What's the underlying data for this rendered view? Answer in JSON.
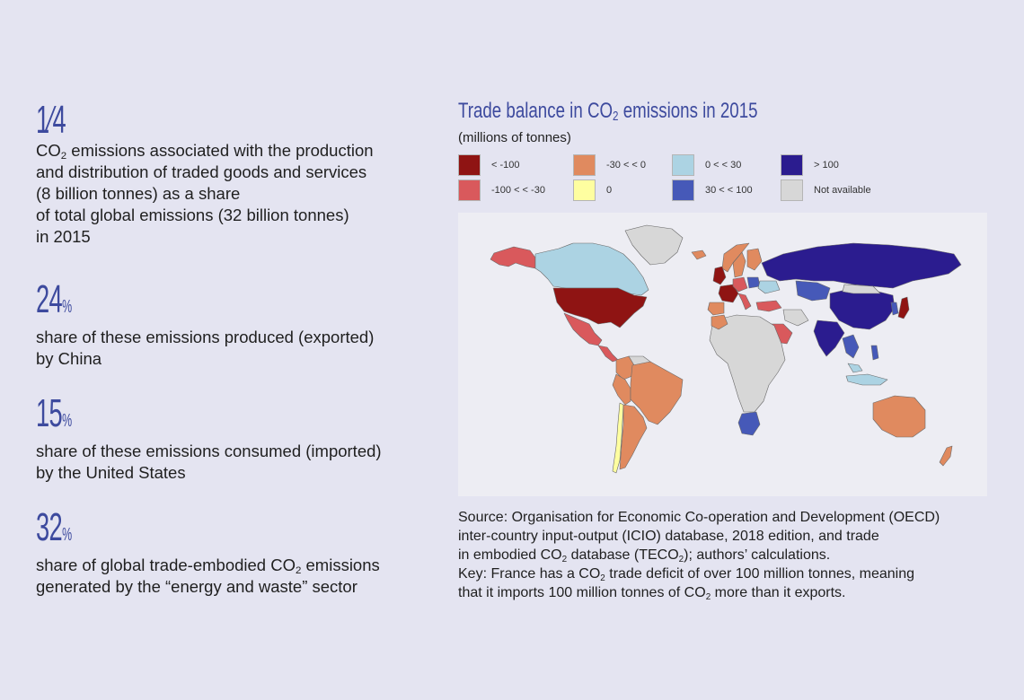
{
  "stats": [
    {
      "value": "1⁄4",
      "unit": "",
      "lines": [
        {
          "pre": "CO",
          "sub": "2",
          "post": " emissions associated with the production"
        },
        {
          "pre": "and distribution of traded goods and services",
          "sub": "",
          "post": ""
        },
        {
          "pre": "(8 billion tonnes) as a share",
          "sub": "",
          "post": ""
        },
        {
          "pre": "of total global emissions (32 billion tonnes)",
          "sub": "",
          "post": ""
        },
        {
          "pre": "in 2015",
          "sub": "",
          "post": ""
        }
      ]
    },
    {
      "value": "24",
      "unit": "%",
      "lines": [
        {
          "pre": "share of these emissions produced (exported)",
          "sub": "",
          "post": ""
        },
        {
          "pre": "by China",
          "sub": "",
          "post": ""
        }
      ]
    },
    {
      "value": "15",
      "unit": "%",
      "lines": [
        {
          "pre": "share of these emissions consumed (imported)",
          "sub": "",
          "post": ""
        },
        {
          "pre": "by the United States",
          "sub": "",
          "post": ""
        }
      ]
    },
    {
      "value": "32",
      "unit": "%",
      "lines": [
        {
          "pre": "share of global trade-embodied CO",
          "sub": "2",
          "post": " emissions"
        },
        {
          "pre": "generated by the “energy and waste” sector",
          "sub": "",
          "post": ""
        }
      ]
    }
  ],
  "map": {
    "title_pre": "Trade balance in CO",
    "title_sub": "2",
    "title_post": " emissions in 2015",
    "unit": "(millions of tonnes)",
    "legend": [
      {
        "label": "< -100",
        "color": "#8f1413"
      },
      {
        "label": "-100 < < -30",
        "color": "#d9595c"
      },
      {
        "label": "-30 < < 0",
        "color": "#e08a5f"
      },
      {
        "label": "0",
        "color": "#fefea0"
      },
      {
        "label": "0 < < 30",
        "color": "#acd3e3"
      },
      {
        "label": "30 < < 100",
        "color": "#4659b8"
      },
      {
        "label": "> 100",
        "color": "#2b1c8f"
      },
      {
        "label": "Not available",
        "color": "#d7d7d7"
      }
    ],
    "regions": [
      {
        "name": "Alaska",
        "category": "-100 < < -30"
      },
      {
        "name": "Canada",
        "category": "0 < < 30"
      },
      {
        "name": "Greenland",
        "category": "Not available"
      },
      {
        "name": "United States",
        "category": "< -100"
      },
      {
        "name": "Mexico",
        "category": "-100 < < -30"
      },
      {
        "name": "Central America",
        "category": "-100 < < -30"
      },
      {
        "name": "Colombia",
        "category": "-30 < < 0"
      },
      {
        "name": "Venezuela",
        "category": "Not available"
      },
      {
        "name": "Peru",
        "category": "-30 < < 0"
      },
      {
        "name": "Brazil",
        "category": "-30 < < 0"
      },
      {
        "name": "Chile",
        "category": "0"
      },
      {
        "name": "Argentina",
        "category": "-30 < < 0"
      },
      {
        "name": "Iceland",
        "category": "-30 < < 0"
      },
      {
        "name": "Norway",
        "category": "-30 < < 0"
      },
      {
        "name": "Sweden",
        "category": "-30 < < 0"
      },
      {
        "name": "Finland",
        "category": "-30 < < 0"
      },
      {
        "name": "United Kingdom",
        "category": "< -100"
      },
      {
        "name": "France",
        "category": "< -100"
      },
      {
        "name": "Germany",
        "category": "-100 < < -30"
      },
      {
        "name": "Spain",
        "category": "-30 < < 0"
      },
      {
        "name": "Italy",
        "category": "-100 < < -30"
      },
      {
        "name": "Poland",
        "category": "30 < < 100"
      },
      {
        "name": "Ukraine",
        "category": "0 < < 30"
      },
      {
        "name": "Russia",
        "category": "> 100"
      },
      {
        "name": "Turkey",
        "category": "-100 < < -30"
      },
      {
        "name": "Kazakhstan",
        "category": "30 < < 100"
      },
      {
        "name": "China",
        "category": "> 100"
      },
      {
        "name": "Mongolia",
        "category": "Not available"
      },
      {
        "name": "Korea",
        "category": "30 < < 100"
      },
      {
        "name": "Japan",
        "category": "< -100"
      },
      {
        "name": "India",
        "category": "> 100"
      },
      {
        "name": "Saudi Arabia",
        "category": "-100 < < -30"
      },
      {
        "name": "Iran",
        "category": "Not available"
      },
      {
        "name": "Southeast Asia",
        "category": "30 < < 100"
      },
      {
        "name": "Malaysia",
        "category": "0 < < 30"
      },
      {
        "name": "Indonesia",
        "category": "0 < < 30"
      },
      {
        "name": "Philippines",
        "category": "30 < < 100"
      },
      {
        "name": "Africa",
        "category": "Not available"
      },
      {
        "name": "Morocco",
        "category": "-30 < < 0"
      },
      {
        "name": "South Africa",
        "category": "30 < < 100"
      },
      {
        "name": "Australia",
        "category": "-30 < < 0"
      },
      {
        "name": "New Zealand",
        "category": "-30 < < 0"
      }
    ]
  },
  "source": {
    "l1": "Source: Organisation for Economic Co-operation and Development (OECD)",
    "l2": "inter-country input-output (ICIO) database, 2018 edition, and trade",
    "l3_pre": "in embodied CO",
    "l3_sub": "2",
    "l3_mid": " database (TECO",
    "l3_sub2": "2",
    "l3_post": "); authors’ calculations.",
    "l4_pre": "Key: France has a CO",
    "l4_sub": "2",
    "l4_post": " trade deficit of over 100 million tonnes, meaning",
    "l5_pre": "that it imports 100 million tonnes of CO",
    "l5_sub": "2",
    "l5_post": " more than it exports."
  }
}
